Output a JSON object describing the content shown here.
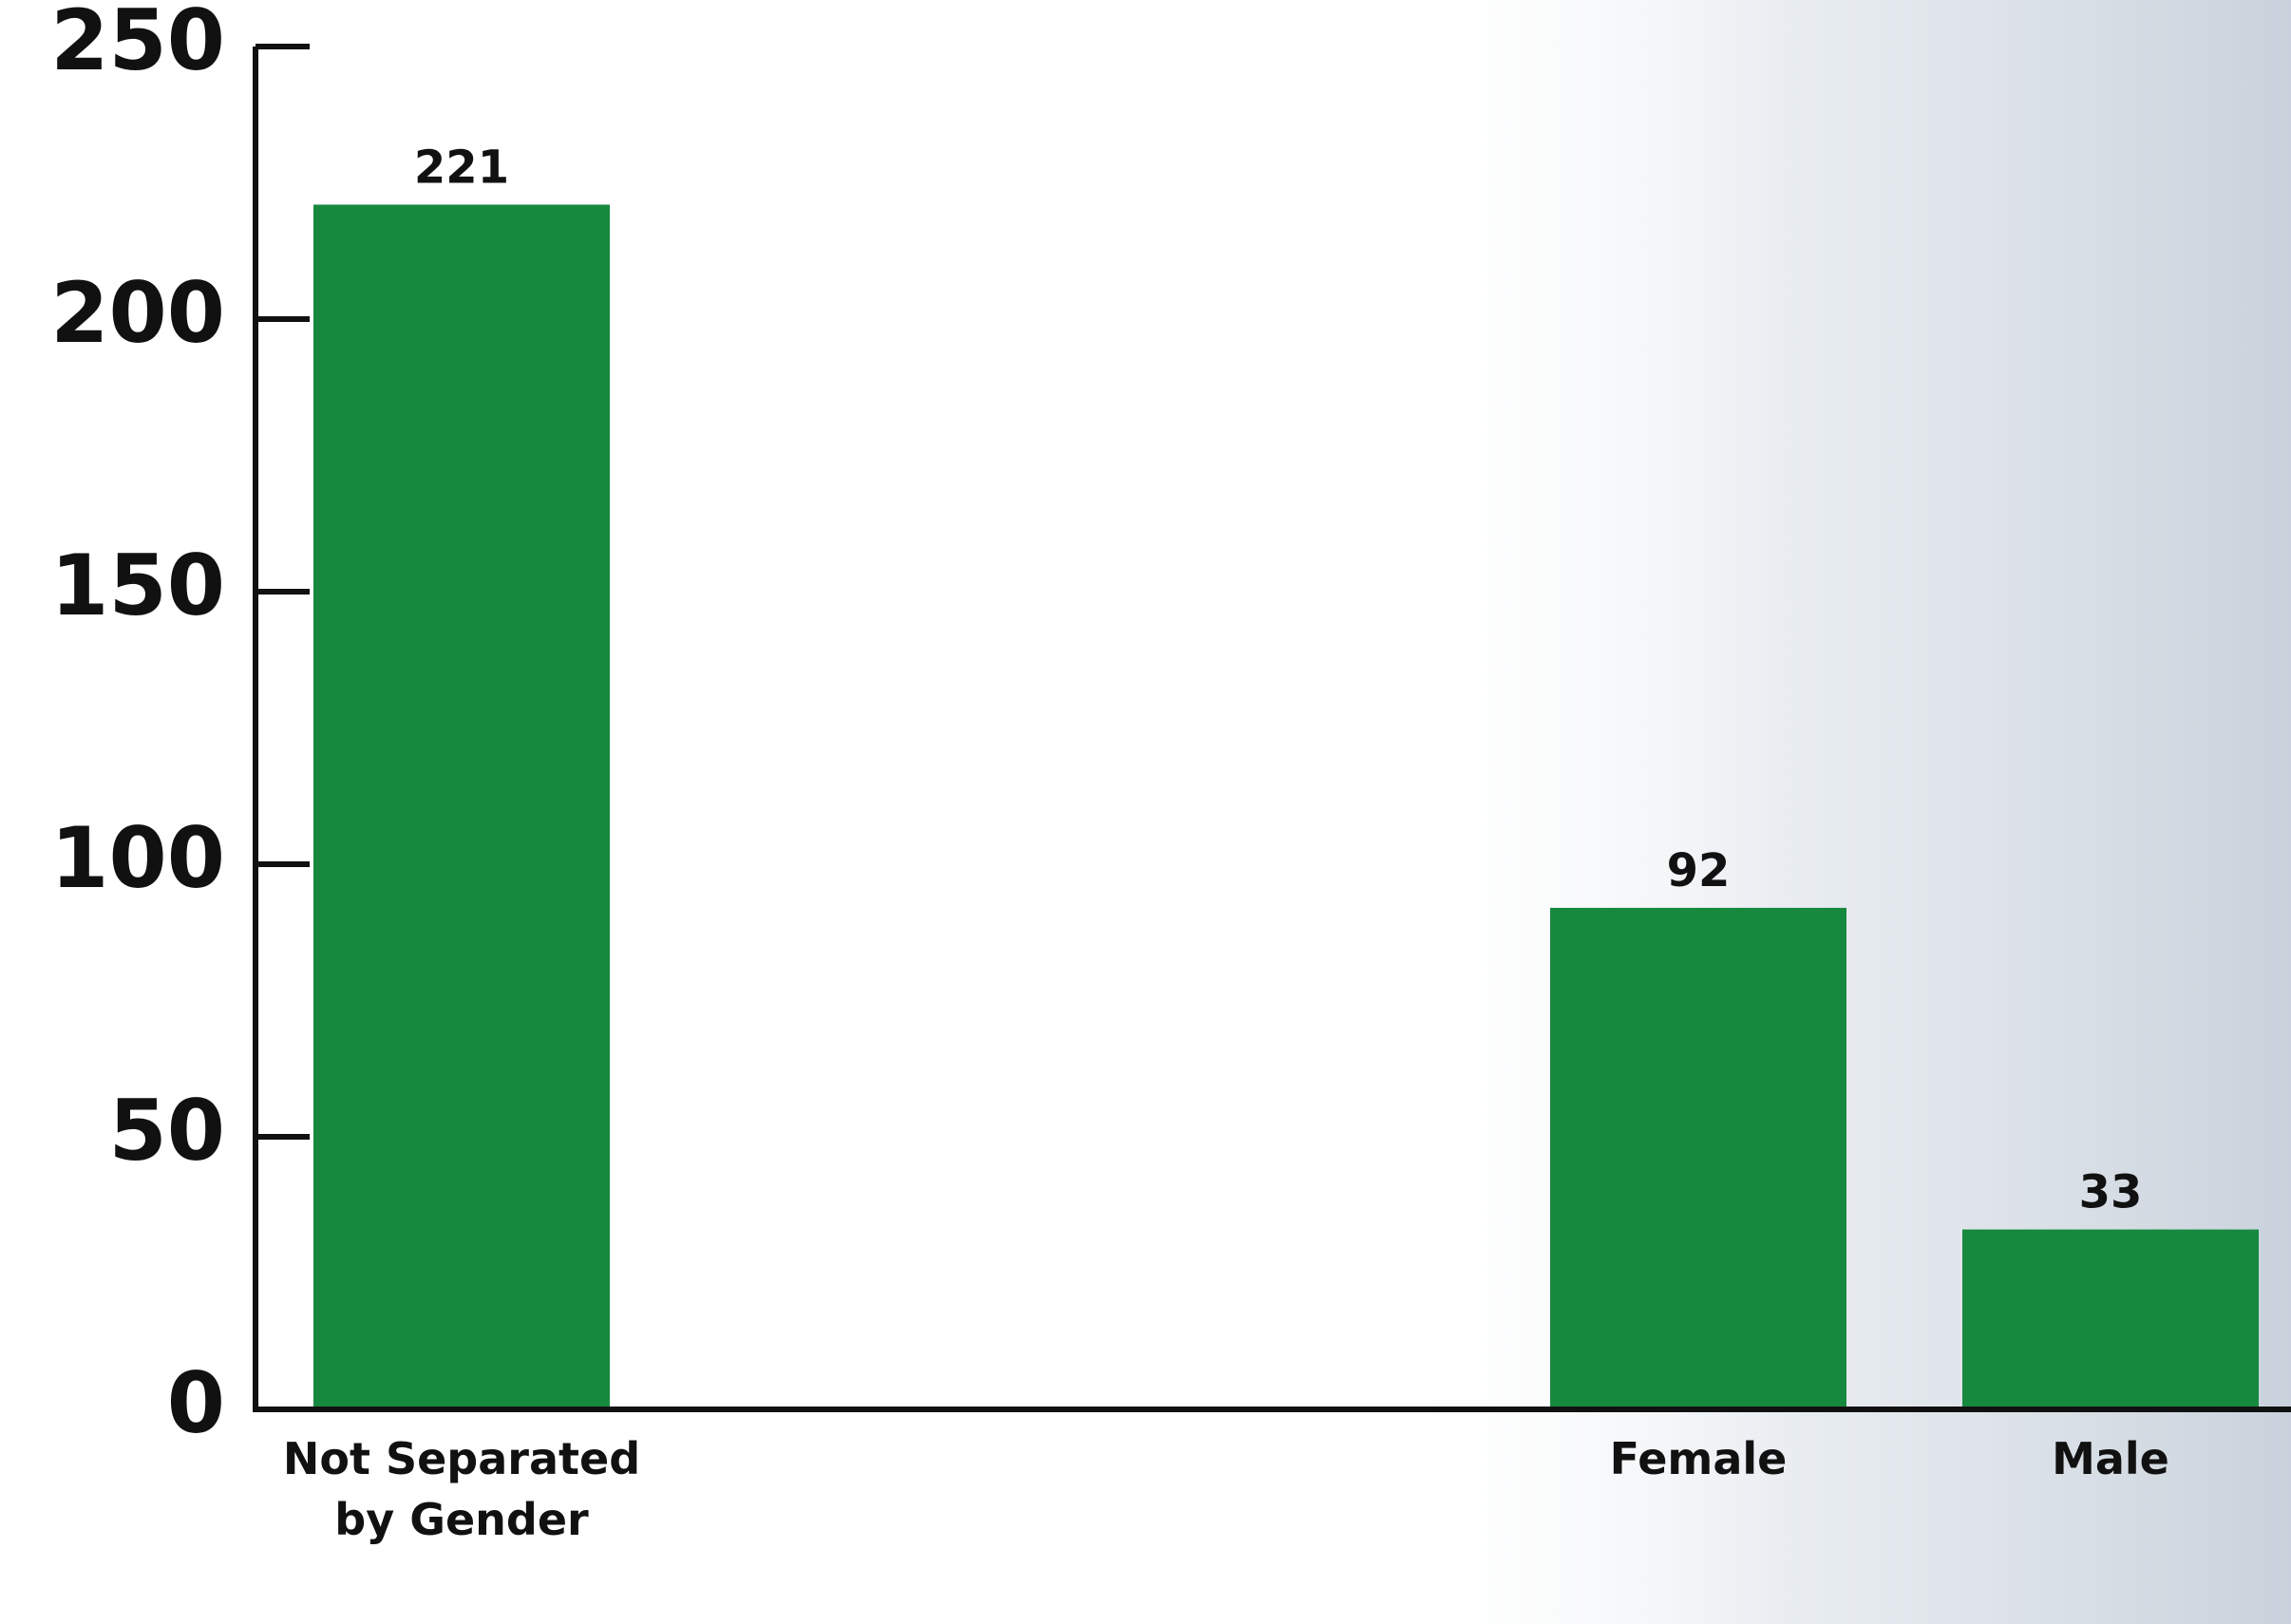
{
  "chart_data": {
    "type": "bar",
    "categories": [
      "Not Separated by Gender",
      null,
      null,
      "Female",
      "Male"
    ],
    "values": [
      221,
      null,
      null,
      92,
      33
    ],
    "color": "#17893f",
    "ylim": [
      0,
      250
    ],
    "yticks": [
      0,
      50,
      100,
      150,
      200,
      250
    ]
  }
}
